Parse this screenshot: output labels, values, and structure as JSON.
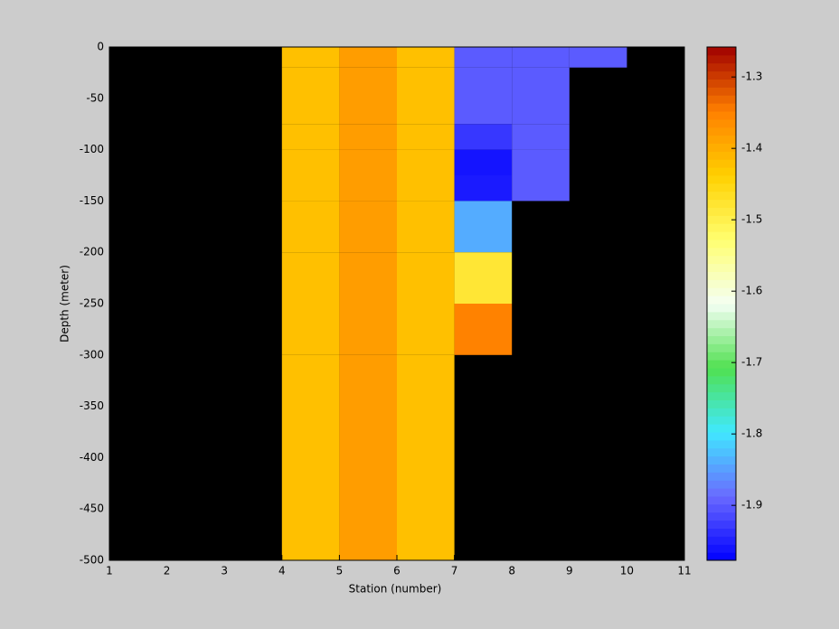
{
  "chart_data": {
    "type": "heatmap",
    "xlabel": "Station (number)",
    "ylabel": "Depth (meter)",
    "x_edges": [
      1,
      2,
      3,
      4,
      5,
      6,
      7,
      8,
      9,
      10,
      11
    ],
    "y_edges": [
      0,
      -20,
      -75,
      -100,
      -125,
      -150,
      -200,
      -250,
      -300,
      -500
    ],
    "z": [
      [
        null,
        null,
        null,
        -1.42,
        -1.38,
        -1.42,
        -1.9,
        -1.9,
        -1.9,
        null
      ],
      [
        null,
        null,
        null,
        -1.42,
        -1.38,
        -1.42,
        -1.9,
        -1.9,
        null,
        null
      ],
      [
        null,
        null,
        null,
        -1.42,
        -1.38,
        -1.42,
        -1.93,
        -1.9,
        null,
        null
      ],
      [
        null,
        null,
        null,
        -1.42,
        -1.38,
        -1.42,
        -1.96,
        -1.9,
        null,
        null
      ],
      [
        null,
        null,
        null,
        -1.42,
        -1.38,
        -1.42,
        -1.955,
        -1.9,
        null,
        null
      ],
      [
        null,
        null,
        null,
        -1.42,
        -1.38,
        -1.42,
        -1.84,
        null,
        null,
        null
      ],
      [
        null,
        null,
        null,
        -1.42,
        -1.38,
        -1.42,
        -1.48,
        null,
        null,
        null
      ],
      [
        null,
        null,
        null,
        -1.42,
        -1.38,
        -1.42,
        -1.35,
        null,
        null,
        null
      ],
      [
        null,
        null,
        null,
        -1.42,
        -1.38,
        -1.42,
        null,
        null,
        null,
        null
      ]
    ],
    "xlim": [
      1,
      11
    ],
    "ylim": [
      -500,
      0
    ],
    "xticks": [
      1,
      2,
      3,
      4,
      5,
      6,
      7,
      8,
      9,
      10,
      11
    ],
    "yticks": [
      0,
      -50,
      -100,
      -150,
      -200,
      -250,
      -300,
      -350,
      -400,
      -450,
      -500
    ],
    "clim": [
      -1.977,
      -1.258
    ],
    "cticks": [
      -1.3,
      -1.4,
      -1.5,
      -1.6,
      -1.7,
      -1.8,
      -1.9
    ],
    "colormap": [
      "#0000ff",
      "#6a6aff",
      "#40e8ff",
      "#50e050",
      "#f4fff4",
      "#ffff70",
      "#ffd000",
      "#ff8000",
      "#a00000"
    ],
    "nan_color": "#000000"
  }
}
